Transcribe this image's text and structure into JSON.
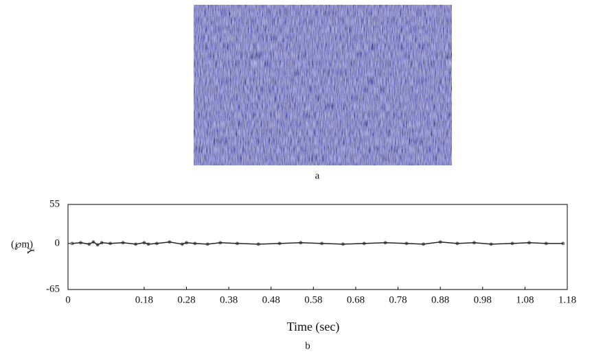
{
  "panels": [
    {
      "label": "a"
    }
  ],
  "chart_data": {
    "type": "line",
    "panel_label": "b",
    "xlabel": "Time (sec)",
    "ylabel": "Y",
    "ylabel_unit": "(℘m)",
    "xlim": [
      0,
      1.18
    ],
    "xticks": [
      0,
      0.18,
      0.28,
      0.38,
      0.48,
      0.58,
      0.68,
      0.78,
      0.88,
      0.98,
      1.08,
      1.18
    ],
    "ylim": [
      -65,
      55
    ],
    "yticks": [
      -65,
      0,
      55
    ],
    "color": "#222",
    "x": [
      0.01,
      0.03,
      0.05,
      0.06,
      0.07,
      0.08,
      0.1,
      0.13,
      0.16,
      0.18,
      0.19,
      0.21,
      0.24,
      0.27,
      0.28,
      0.3,
      0.33,
      0.36,
      0.4,
      0.45,
      0.5,
      0.55,
      0.6,
      0.65,
      0.7,
      0.75,
      0.8,
      0.84,
      0.88,
      0.92,
      0.96,
      1.0,
      1.05,
      1.09,
      1.13,
      1.17
    ],
    "values": [
      0,
      1,
      -1,
      2,
      -2,
      1,
      0,
      1,
      -1,
      1,
      -1,
      0,
      2,
      -1,
      1,
      0,
      -1,
      1,
      0,
      -1,
      0,
      1,
      0,
      -1,
      0,
      1,
      0,
      -1,
      2,
      0,
      1,
      -1,
      0,
      1,
      0,
      0
    ]
  }
}
